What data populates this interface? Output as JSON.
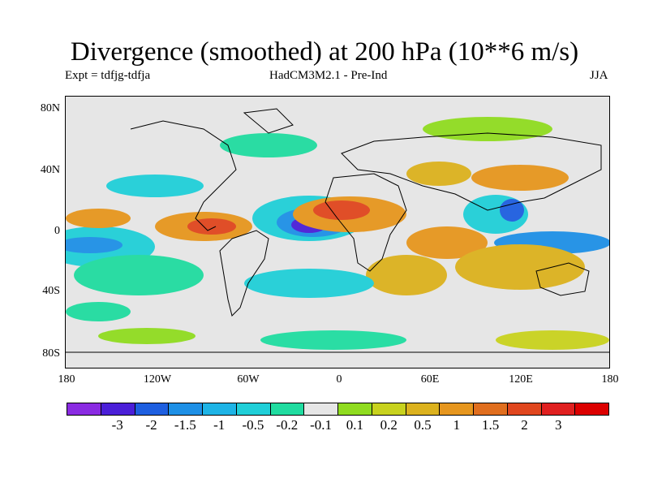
{
  "header": {
    "title": "Divergence (smoothed) at 200 hPa (10**6 m/s)",
    "experiment": "Expt = tdfjg-tdfja",
    "model": "HadCM3M2.1 - Pre-Ind",
    "season": "JJA"
  },
  "axes": {
    "lat_ticks": [
      "80N",
      "40N",
      "0",
      "40S",
      "80S"
    ],
    "lon_ticks": [
      "180",
      "120W",
      "60W",
      "0",
      "60E",
      "120E",
      "180"
    ]
  },
  "colorbar": {
    "colors": [
      "#8a2be2",
      "#4b1fd8",
      "#1e5fe0",
      "#1e90e6",
      "#1eb4e6",
      "#20cfd8",
      "#20dca0",
      "#e6e6e6",
      "#90dc20",
      "#c8d21e",
      "#dcb21e",
      "#e6961e",
      "#e06e1e",
      "#e0461e",
      "#e02020",
      "#dc0000"
    ],
    "labels": [
      "-3",
      "-2",
      "-1.5",
      "-1",
      "-0.5",
      "-0.2",
      "-0.1",
      "0.1",
      "0.2",
      "0.5",
      "1",
      "1.5",
      "2",
      "3"
    ]
  },
  "map": {
    "background": "#e6e6e6"
  }
}
